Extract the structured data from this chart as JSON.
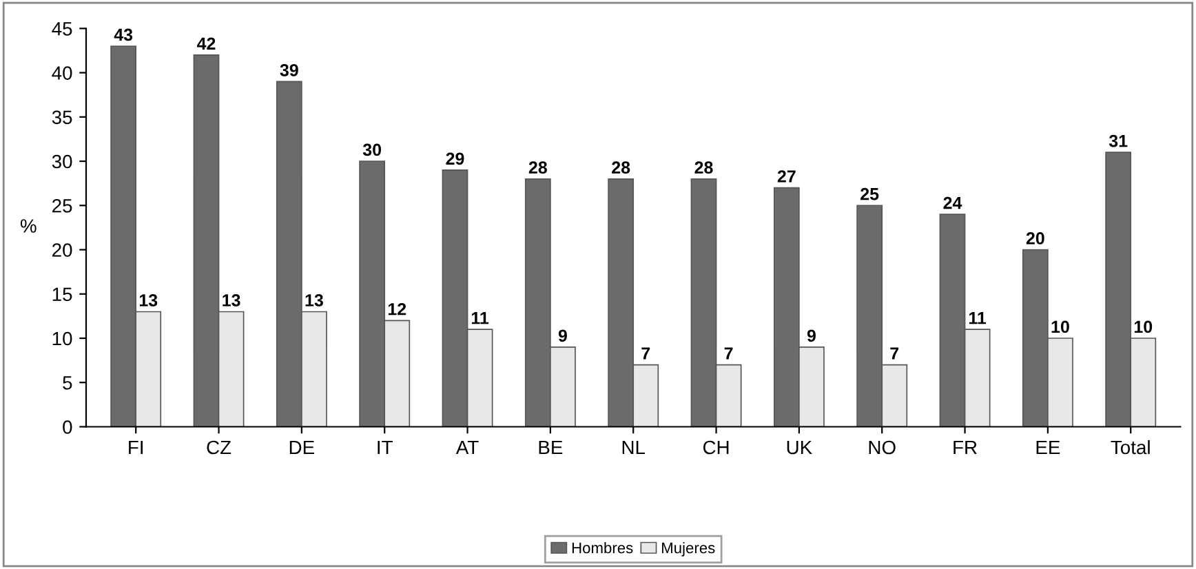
{
  "chart_data": {
    "type": "bar",
    "ylabel": "%",
    "categories": [
      "FI",
      "CZ",
      "DE",
      "IT",
      "AT",
      "BE",
      "NL",
      "CH",
      "UK",
      "NO",
      "FR",
      "EE",
      "Total"
    ],
    "series": [
      {
        "name": "Hombres",
        "color": "#6b6b6b",
        "values": [
          43,
          42,
          39,
          30,
          29,
          28,
          28,
          28,
          27,
          25,
          24,
          20,
          31
        ]
      },
      {
        "name": "Mujeres",
        "color": "#e8e8e8",
        "values": [
          13,
          13,
          13,
          12,
          11,
          9,
          7,
          7,
          9,
          7,
          11,
          10,
          10
        ]
      }
    ],
    "ylim": [
      0,
      45
    ],
    "yticks": [
      0,
      5,
      10,
      15,
      20,
      25,
      30,
      35,
      40,
      45
    ],
    "data_labels": true,
    "grid": false,
    "legend": "bottom"
  }
}
